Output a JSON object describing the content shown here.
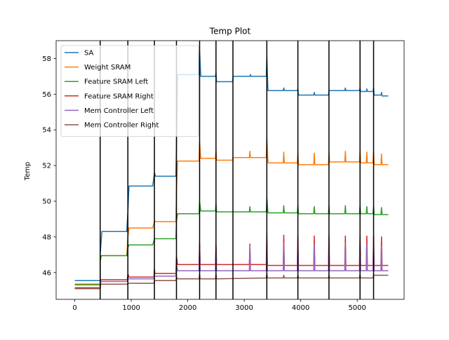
{
  "chart_data": {
    "type": "line",
    "title": "Temp Plot",
    "xlabel": "",
    "ylabel": "Temp",
    "xlim": [
      -330,
      5830
    ],
    "ylim": [
      44.5,
      59.0
    ],
    "xticks": [
      0,
      1000,
      2000,
      3000,
      4000,
      5000
    ],
    "yticks": [
      46,
      48,
      50,
      52,
      54,
      56,
      58
    ],
    "grid": false,
    "legend_position": "top-left",
    "vlines": [
      450,
      940,
      1410,
      1800,
      2210,
      2500,
      2800,
      3400,
      3950,
      4500,
      5050,
      5290
    ],
    "series": [
      {
        "name": "SA",
        "color": "#1f77b4",
        "points": [
          [
            0,
            45.55
          ],
          [
            450,
            45.55
          ],
          [
            450,
            47.0
          ],
          [
            480,
            48.3
          ],
          [
            920,
            48.3
          ],
          [
            940,
            49.4
          ],
          [
            960,
            50.85
          ],
          [
            1380,
            50.85
          ],
          [
            1410,
            51.6
          ],
          [
            1430,
            51.4
          ],
          [
            1790,
            51.4
          ],
          [
            1800,
            53.0
          ],
          [
            1820,
            57.1
          ],
          [
            2200,
            57.1
          ],
          [
            2210,
            58.4
          ],
          [
            2230,
            57.0
          ],
          [
            2490,
            57.0
          ],
          [
            2500,
            57.2
          ],
          [
            2510,
            56.7
          ],
          [
            2790,
            56.7
          ],
          [
            2800,
            56.9
          ],
          [
            2810,
            57.0
          ],
          [
            3100,
            57.0
          ],
          [
            3110,
            57.1
          ],
          [
            3120,
            57.0
          ],
          [
            3390,
            57.0
          ],
          [
            3400,
            58.1
          ],
          [
            3420,
            56.2
          ],
          [
            3690,
            56.2
          ],
          [
            3700,
            56.35
          ],
          [
            3710,
            56.2
          ],
          [
            3940,
            56.2
          ],
          [
            3950,
            56.3
          ],
          [
            3960,
            55.95
          ],
          [
            4230,
            55.95
          ],
          [
            4240,
            56.1
          ],
          [
            4250,
            55.95
          ],
          [
            4490,
            55.95
          ],
          [
            4500,
            56.2
          ],
          [
            4510,
            56.2
          ],
          [
            4780,
            56.2
          ],
          [
            4790,
            56.35
          ],
          [
            4800,
            56.2
          ],
          [
            5040,
            56.2
          ],
          [
            5050,
            56.35
          ],
          [
            5060,
            56.15
          ],
          [
            5160,
            56.15
          ],
          [
            5170,
            56.3
          ],
          [
            5180,
            56.15
          ],
          [
            5280,
            56.15
          ],
          [
            5290,
            56.35
          ],
          [
            5300,
            55.95
          ],
          [
            5420,
            55.95
          ],
          [
            5430,
            56.1
          ],
          [
            5440,
            55.9
          ],
          [
            5550,
            55.9
          ]
        ]
      },
      {
        "name": "Weight SRAM",
        "color": "#ff7f0e",
        "points": [
          [
            0,
            45.3
          ],
          [
            450,
            45.3
          ],
          [
            450,
            46.6
          ],
          [
            470,
            46.95
          ],
          [
            920,
            46.95
          ],
          [
            940,
            48.0
          ],
          [
            960,
            48.5
          ],
          [
            1380,
            48.5
          ],
          [
            1410,
            48.9
          ],
          [
            1430,
            48.85
          ],
          [
            1790,
            48.85
          ],
          [
            1800,
            50.6
          ],
          [
            1820,
            52.25
          ],
          [
            2200,
            52.25
          ],
          [
            2210,
            53.3
          ],
          [
            2230,
            52.4
          ],
          [
            2490,
            52.4
          ],
          [
            2500,
            52.85
          ],
          [
            2510,
            52.3
          ],
          [
            2790,
            52.3
          ],
          [
            2800,
            52.45
          ],
          [
            3090,
            52.45
          ],
          [
            3100,
            52.8
          ],
          [
            3110,
            52.45
          ],
          [
            3390,
            52.45
          ],
          [
            3400,
            53.6
          ],
          [
            3420,
            52.15
          ],
          [
            3690,
            52.15
          ],
          [
            3700,
            52.75
          ],
          [
            3710,
            52.15
          ],
          [
            3940,
            52.15
          ],
          [
            3950,
            52.7
          ],
          [
            3960,
            52.05
          ],
          [
            4230,
            52.05
          ],
          [
            4240,
            52.7
          ],
          [
            4250,
            52.05
          ],
          [
            4490,
            52.05
          ],
          [
            4500,
            52.7
          ],
          [
            4510,
            52.2
          ],
          [
            4780,
            52.2
          ],
          [
            4790,
            52.8
          ],
          [
            4800,
            52.2
          ],
          [
            5040,
            52.2
          ],
          [
            5050,
            52.8
          ],
          [
            5060,
            52.15
          ],
          [
            5160,
            52.15
          ],
          [
            5170,
            52.75
          ],
          [
            5180,
            52.15
          ],
          [
            5280,
            52.15
          ],
          [
            5290,
            52.75
          ],
          [
            5300,
            52.05
          ],
          [
            5420,
            52.05
          ],
          [
            5430,
            52.65
          ],
          [
            5440,
            52.05
          ],
          [
            5550,
            52.05
          ]
        ]
      },
      {
        "name": "Feature SRAM Left",
        "color": "#2ca02c",
        "points": [
          [
            0,
            45.35
          ],
          [
            450,
            45.35
          ],
          [
            450,
            46.7
          ],
          [
            470,
            46.95
          ],
          [
            920,
            46.95
          ],
          [
            940,
            47.4
          ],
          [
            960,
            47.55
          ],
          [
            1380,
            47.55
          ],
          [
            1410,
            47.9
          ],
          [
            1790,
            47.9
          ],
          [
            1800,
            48.9
          ],
          [
            1820,
            49.3
          ],
          [
            2200,
            49.3
          ],
          [
            2210,
            49.95
          ],
          [
            2230,
            49.45
          ],
          [
            2490,
            49.45
          ],
          [
            2500,
            49.85
          ],
          [
            2510,
            49.4
          ],
          [
            2790,
            49.4
          ],
          [
            3090,
            49.4
          ],
          [
            3100,
            49.7
          ],
          [
            3110,
            49.4
          ],
          [
            3390,
            49.4
          ],
          [
            3400,
            50.2
          ],
          [
            3420,
            49.35
          ],
          [
            3690,
            49.35
          ],
          [
            3700,
            49.75
          ],
          [
            3710,
            49.35
          ],
          [
            3940,
            49.35
          ],
          [
            3950,
            49.75
          ],
          [
            3960,
            49.3
          ],
          [
            4230,
            49.3
          ],
          [
            4240,
            49.7
          ],
          [
            4250,
            49.3
          ],
          [
            4490,
            49.3
          ],
          [
            4500,
            49.75
          ],
          [
            4510,
            49.3
          ],
          [
            4780,
            49.3
          ],
          [
            4790,
            49.75
          ],
          [
            4800,
            49.3
          ],
          [
            5040,
            49.3
          ],
          [
            5050,
            49.75
          ],
          [
            5060,
            49.3
          ],
          [
            5160,
            49.3
          ],
          [
            5170,
            49.7
          ],
          [
            5180,
            49.3
          ],
          [
            5280,
            49.3
          ],
          [
            5290,
            49.7
          ],
          [
            5300,
            49.25
          ],
          [
            5420,
            49.25
          ],
          [
            5430,
            49.65
          ],
          [
            5440,
            49.25
          ],
          [
            5550,
            49.25
          ]
        ]
      },
      {
        "name": "Feature SRAM Right",
        "color": "#d62728",
        "points": [
          [
            0,
            45.15
          ],
          [
            450,
            45.15
          ],
          [
            460,
            45.6
          ],
          [
            930,
            45.6
          ],
          [
            940,
            45.95
          ],
          [
            960,
            45.75
          ],
          [
            1400,
            45.75
          ],
          [
            1410,
            46.2
          ],
          [
            1420,
            45.95
          ],
          [
            1790,
            45.95
          ],
          [
            1800,
            46.9
          ],
          [
            1820,
            46.45
          ],
          [
            2200,
            46.45
          ],
          [
            2210,
            47.65
          ],
          [
            2220,
            46.45
          ],
          [
            2490,
            46.45
          ],
          [
            2500,
            47.55
          ],
          [
            2510,
            46.45
          ],
          [
            3090,
            46.45
          ],
          [
            3100,
            47.6
          ],
          [
            3110,
            46.45
          ],
          [
            3390,
            46.45
          ],
          [
            3400,
            48.25
          ],
          [
            3410,
            46.4
          ],
          [
            3690,
            46.4
          ],
          [
            3700,
            48.1
          ],
          [
            3710,
            46.4
          ],
          [
            3940,
            46.4
          ],
          [
            3950,
            48.1
          ],
          [
            3960,
            46.4
          ],
          [
            4230,
            46.4
          ],
          [
            4240,
            48.05
          ],
          [
            4250,
            46.4
          ],
          [
            4490,
            46.4
          ],
          [
            4500,
            48.1
          ],
          [
            4510,
            46.4
          ],
          [
            4780,
            46.4
          ],
          [
            4790,
            48.05
          ],
          [
            4800,
            46.4
          ],
          [
            5040,
            46.4
          ],
          [
            5050,
            48.05
          ],
          [
            5060,
            46.4
          ],
          [
            5160,
            46.4
          ],
          [
            5170,
            48.05
          ],
          [
            5180,
            46.4
          ],
          [
            5280,
            46.4
          ],
          [
            5290,
            48.05
          ],
          [
            5300,
            46.4
          ],
          [
            5420,
            46.4
          ],
          [
            5430,
            48.0
          ],
          [
            5440,
            46.4
          ],
          [
            5550,
            46.4
          ]
        ]
      },
      {
        "name": "Mem Controller Left",
        "color": "#9467bd",
        "points": [
          [
            0,
            45.1
          ],
          [
            450,
            45.1
          ],
          [
            460,
            45.5
          ],
          [
            930,
            45.5
          ],
          [
            940,
            45.65
          ],
          [
            1400,
            45.65
          ],
          [
            1410,
            45.8
          ],
          [
            1790,
            45.8
          ],
          [
            1800,
            46.5
          ],
          [
            1820,
            46.1
          ],
          [
            2200,
            46.1
          ],
          [
            2210,
            47.5
          ],
          [
            2220,
            46.1
          ],
          [
            2490,
            46.1
          ],
          [
            2500,
            47.4
          ],
          [
            2510,
            46.1
          ],
          [
            3090,
            46.1
          ],
          [
            3100,
            47.5
          ],
          [
            3110,
            46.1
          ],
          [
            3390,
            46.1
          ],
          [
            3400,
            47.85
          ],
          [
            3410,
            46.1
          ],
          [
            3690,
            46.1
          ],
          [
            3700,
            47.65
          ],
          [
            3710,
            46.1
          ],
          [
            3940,
            46.1
          ],
          [
            3950,
            47.6
          ],
          [
            3960,
            46.1
          ],
          [
            4230,
            46.1
          ],
          [
            4240,
            47.6
          ],
          [
            4250,
            46.1
          ],
          [
            4490,
            46.1
          ],
          [
            4500,
            47.65
          ],
          [
            4510,
            46.1
          ],
          [
            4780,
            46.1
          ],
          [
            4790,
            47.65
          ],
          [
            4800,
            46.1
          ],
          [
            5040,
            46.1
          ],
          [
            5050,
            47.65
          ],
          [
            5060,
            46.1
          ],
          [
            5160,
            46.1
          ],
          [
            5170,
            47.6
          ],
          [
            5180,
            46.1
          ],
          [
            5280,
            46.1
          ],
          [
            5290,
            47.6
          ],
          [
            5300,
            46.1
          ],
          [
            5420,
            46.1
          ],
          [
            5430,
            47.5
          ],
          [
            5440,
            46.1
          ],
          [
            5550,
            46.1
          ]
        ]
      },
      {
        "name": "Mem Controller Right",
        "color": "#8c564b",
        "points": [
          [
            0,
            45.1
          ],
          [
            450,
            45.1
          ],
          [
            460,
            45.35
          ],
          [
            930,
            45.35
          ],
          [
            940,
            45.4
          ],
          [
            1400,
            45.4
          ],
          [
            1410,
            45.55
          ],
          [
            1790,
            45.55
          ],
          [
            1800,
            45.75
          ],
          [
            1820,
            45.65
          ],
          [
            2200,
            45.65
          ],
          [
            2210,
            45.9
          ],
          [
            2220,
            45.65
          ],
          [
            2490,
            45.65
          ],
          [
            2500,
            45.9
          ],
          [
            2510,
            45.65
          ],
          [
            3390,
            45.7
          ],
          [
            3400,
            45.95
          ],
          [
            3410,
            45.7
          ],
          [
            3690,
            45.7
          ],
          [
            3700,
            45.85
          ],
          [
            3710,
            45.7
          ],
          [
            3940,
            45.7
          ],
          [
            3950,
            45.85
          ],
          [
            3960,
            45.7
          ],
          [
            4490,
            45.7
          ],
          [
            4500,
            45.85
          ],
          [
            4510,
            45.7
          ],
          [
            5040,
            45.7
          ],
          [
            5050,
            45.9
          ],
          [
            5060,
            45.7
          ],
          [
            5280,
            45.7
          ],
          [
            5290,
            45.9
          ],
          [
            5300,
            45.85
          ],
          [
            5550,
            45.85
          ]
        ]
      }
    ]
  }
}
